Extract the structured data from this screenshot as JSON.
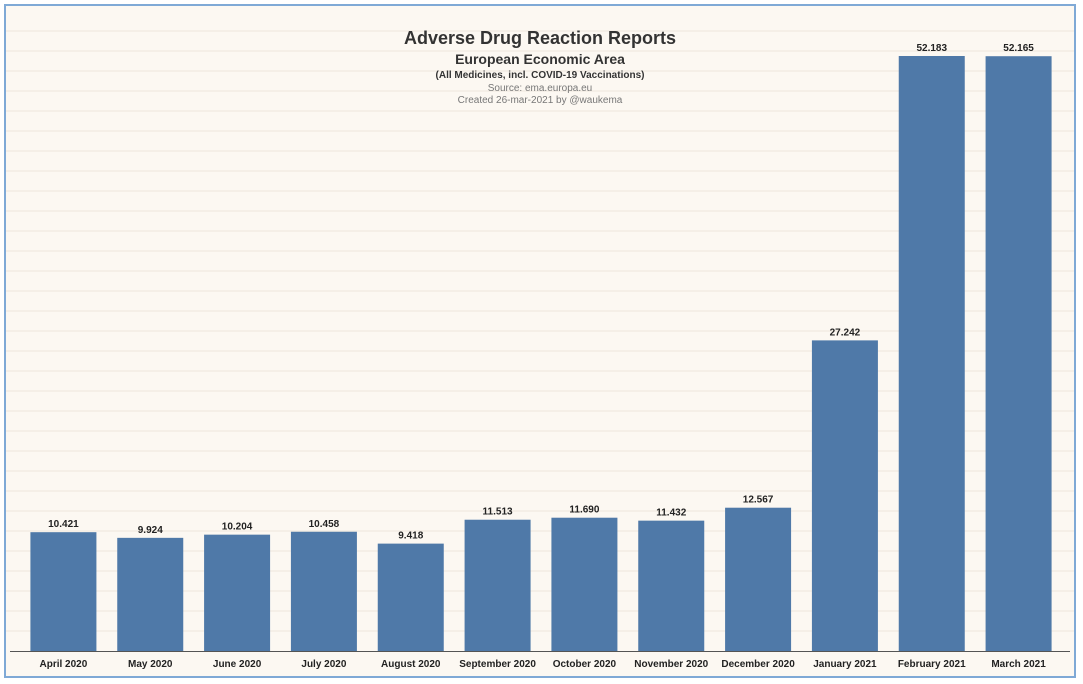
{
  "chart_data": {
    "type": "bar",
    "title": "Adverse Drug Reaction Reports",
    "subtitle": "European Economic Area",
    "subtitle2": "(All Medicines, incl. COVID-19 Vaccinations)",
    "source": "Source: ema.europa.eu",
    "created": "Created 26-mar-2021 by @waukema",
    "categories": [
      "April 2020",
      "May 2020",
      "June 2020",
      "July 2020",
      "August 2020",
      "September 2020",
      "October 2020",
      "November 2020",
      "December 2020",
      "January 2021",
      "February 2021",
      "March 2021"
    ],
    "values": [
      10421,
      9924,
      10204,
      10458,
      9418,
      11513,
      11690,
      11432,
      12567,
      27242,
      52183,
      52165
    ],
    "value_labels": [
      "10.421",
      "9.924",
      "10.204",
      "10.458",
      "9.418",
      "11.513",
      "11.690",
      "11.432",
      "12.567",
      "27.242",
      "52.183",
      "52.165"
    ],
    "xlabel": "",
    "ylabel": "",
    "ylim": [
      0,
      52183
    ],
    "grid": true,
    "bar_color": "#4f79a8"
  }
}
